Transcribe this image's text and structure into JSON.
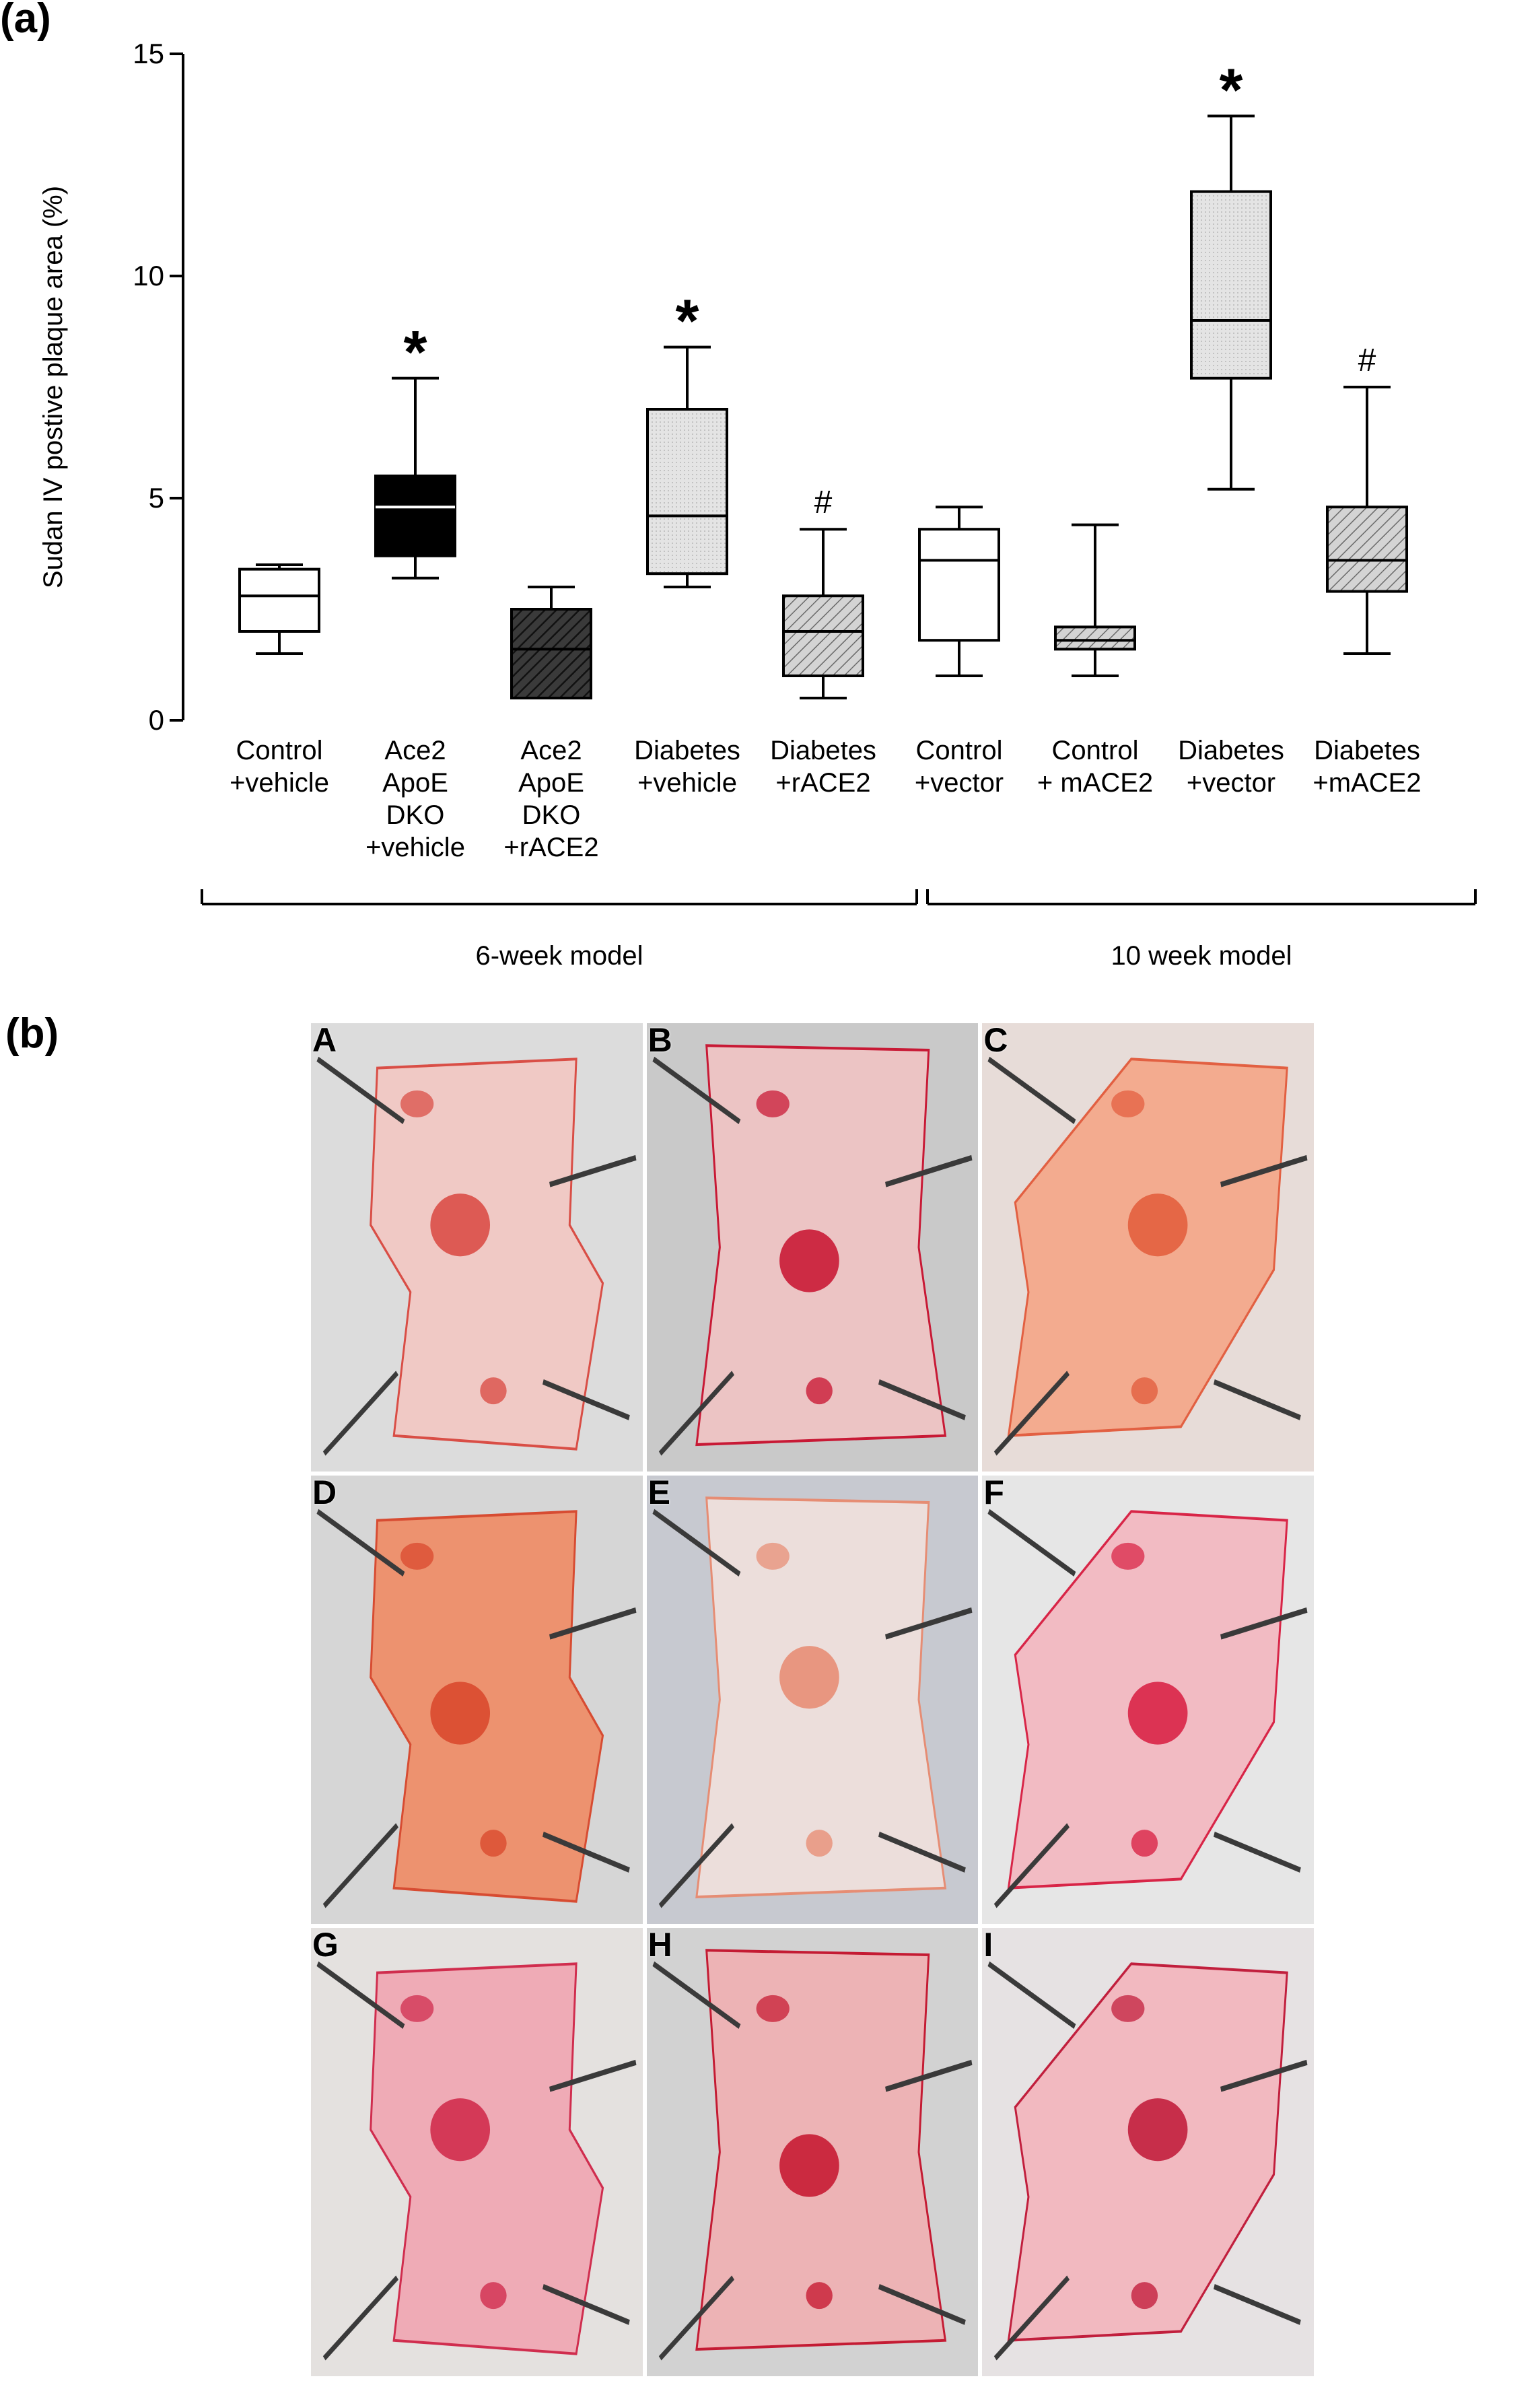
{
  "panel_a_label": "(a)",
  "panel_b_label": "(b)",
  "chart_data": {
    "type": "box",
    "ylabel": "Sudan IV postive plaque area (%)",
    "ylim": [
      0,
      15
    ],
    "yticks": [
      0,
      5,
      10,
      15
    ],
    "grid": false,
    "boxes": [
      {
        "label": [
          "Control",
          "+vehicle"
        ],
        "min": 1.5,
        "q1": 2.0,
        "median": 2.8,
        "q3": 3.4,
        "max": 3.5,
        "fill": "white",
        "pattern": "none",
        "annotation": ""
      },
      {
        "label": [
          "Ace2",
          "ApoE",
          "DKO",
          "+vehicle"
        ],
        "min": 3.2,
        "q1": 3.7,
        "median": 4.8,
        "q3": 5.5,
        "max": 7.7,
        "fill": "black",
        "pattern": "none",
        "annotation": "*"
      },
      {
        "label": [
          "Ace2",
          "ApoE",
          "DKO",
          "+rACE2"
        ],
        "min": 0.5,
        "q1": 0.5,
        "median": 1.6,
        "q3": 2.5,
        "max": 3.0,
        "fill": "hatch-dark",
        "pattern": "hatch",
        "annotation": ""
      },
      {
        "label": [
          "Diabetes",
          "+vehicle"
        ],
        "min": 3.0,
        "q1": 3.3,
        "median": 4.6,
        "q3": 7.0,
        "max": 8.4,
        "fill": "dotted-gray",
        "pattern": "dots",
        "annotation": "*"
      },
      {
        "label": [
          "Diabetes",
          "+rACE2"
        ],
        "min": 0.5,
        "q1": 1.0,
        "median": 2.0,
        "q3": 2.8,
        "max": 4.3,
        "fill": "hatch-light",
        "pattern": "hatch",
        "annotation": "#"
      },
      {
        "label": [
          "Control",
          "+vector"
        ],
        "min": 1.0,
        "q1": 1.8,
        "median": 3.6,
        "q3": 4.3,
        "max": 4.8,
        "fill": "white",
        "pattern": "none",
        "annotation": ""
      },
      {
        "label": [
          "Control",
          "+ mACE2"
        ],
        "min": 1.0,
        "q1": 1.6,
        "median": 1.8,
        "q3": 2.1,
        "max": 4.4,
        "fill": "hatch-light",
        "pattern": "hatch",
        "annotation": ""
      },
      {
        "label": [
          "Diabetes",
          "+vector"
        ],
        "min": 5.2,
        "q1": 7.7,
        "median": 9.0,
        "q3": 11.9,
        "max": 13.6,
        "fill": "dotted-gray",
        "pattern": "dots",
        "annotation": "*"
      },
      {
        "label": [
          "Diabetes",
          "+mACE2"
        ],
        "min": 1.5,
        "q1": 2.9,
        "median": 3.6,
        "q3": 4.8,
        "max": 7.5,
        "fill": "hatch-light",
        "pattern": "hatch",
        "annotation": "#"
      }
    ],
    "groups": [
      {
        "label": "6-week model",
        "from_box": 0,
        "to_box": 4
      },
      {
        "label": "10 week model",
        "from_box": 5,
        "to_box": 8
      }
    ]
  },
  "photo_panels": [
    {
      "letter": "A",
      "tissue": "#f2c9c4",
      "stain": "#d9473f",
      "bg": "#dcdcdc"
    },
    {
      "letter": "B",
      "tissue": "#eec4c4",
      "stain": "#c8102e",
      "bg": "#c9c9c9"
    },
    {
      "letter": "C",
      "tissue": "#f4a98c",
      "stain": "#e25a3a",
      "bg": "#e7dcd8"
    },
    {
      "letter": "D",
      "tissue": "#ef8f6a",
      "stain": "#d8452a",
      "bg": "#d6d6d6"
    },
    {
      "letter": "E",
      "tissue": "#eee0dc",
      "stain": "#e88a70",
      "bg": "#c7c9d0"
    },
    {
      "letter": "F",
      "tissue": "#f3b9c2",
      "stain": "#d81b3f",
      "bg": "#e6e6e6"
    },
    {
      "letter": "G",
      "tissue": "#f0a9b4",
      "stain": "#cf2447",
      "bg": "#e4e1df"
    },
    {
      "letter": "H",
      "tissue": "#efb2b4",
      "stain": "#c4122b",
      "bg": "#d2d2d2"
    },
    {
      "letter": "I",
      "tissue": "#f3b7bf",
      "stain": "#c01535",
      "bg": "#e6e2e3"
    }
  ]
}
